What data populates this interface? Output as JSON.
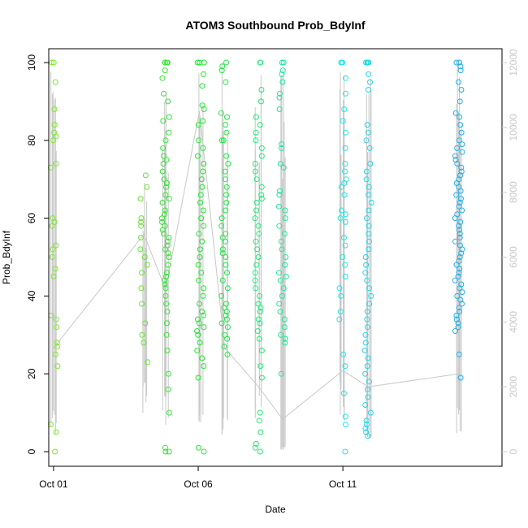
{
  "chart_data": {
    "type": "scatter",
    "title": "ATOM3 Southbound Prob_BdyInf",
    "xlabel": "Date",
    "ylabel": "Prob_BdyInf",
    "x_is_date": true,
    "x_range": [
      "2023-09-30T20:00:00",
      "2023-10-16T12:00:00"
    ],
    "x_ticks": [
      {
        "date": "2023-10-01",
        "label": "Oct 01"
      },
      {
        "date": "2023-10-06",
        "label": "Oct 06"
      },
      {
        "date": "2023-10-11",
        "label": "Oct 11"
      }
    ],
    "ylim": [
      0,
      100
    ],
    "y_ticks": [
      0,
      20,
      40,
      60,
      80,
      100
    ],
    "y2lim": [
      0,
      12000
    ],
    "y2_ticks": [
      0,
      2000,
      4000,
      6000,
      8000,
      10000,
      12000
    ],
    "y2_color": "#c8c8c8",
    "grid": false,
    "legend": "none",
    "point_style": "open-circle",
    "line_color": "#c8c8c8",
    "clusters": [
      {
        "date": "2023-10-01T00:30:00",
        "color": "#7fe633",
        "values": [
          100,
          100,
          95,
          88,
          84,
          82,
          81,
          80,
          74,
          73,
          60,
          59,
          58,
          53,
          52,
          50,
          47,
          45,
          35,
          34,
          32,
          28,
          27,
          25,
          22,
          7,
          5,
          0
        ]
      },
      {
        "date": "2023-10-04T03:00:00",
        "color": "#66e633",
        "values": [
          71,
          68,
          65,
          60,
          59,
          58,
          55,
          52,
          50,
          48,
          46,
          42,
          38,
          33,
          30,
          28,
          23
        ]
      },
      {
        "date": "2023-10-04T21:00:00",
        "color": "#33e633",
        "values": [
          100,
          100,
          100,
          100,
          98,
          96,
          92,
          90,
          86,
          85,
          82,
          80,
          78,
          76,
          75,
          74,
          72,
          70,
          69,
          68,
          66,
          65,
          64,
          62,
          61,
          60,
          59,
          58,
          57,
          56,
          55,
          54,
          53,
          52,
          51,
          50,
          48,
          46,
          45,
          44,
          43,
          42,
          40,
          38,
          36,
          33,
          30,
          26,
          20,
          16,
          10,
          1,
          0,
          0
        ]
      },
      {
        "date": "2023-10-06T02:00:00",
        "color": "#22e633",
        "values": [
          100,
          100,
          100,
          100,
          97,
          94,
          89,
          88,
          85,
          84,
          80,
          78,
          76,
          74,
          72,
          70,
          68,
          66,
          64,
          62,
          60,
          58,
          56,
          54,
          52,
          50,
          48,
          46,
          44,
          42,
          40,
          38,
          36,
          35,
          34,
          33,
          32,
          31,
          30,
          28,
          26,
          24,
          22,
          19,
          1,
          0
        ]
      },
      {
        "date": "2023-10-06T22:00:00",
        "color": "#22e644",
        "values": [
          100,
          99,
          98,
          95,
          87,
          86,
          84,
          82,
          80,
          80,
          76,
          74,
          72,
          70,
          68,
          66,
          64,
          62,
          60,
          58,
          56,
          55,
          54,
          52,
          51,
          50,
          48,
          46,
          44,
          42,
          40,
          38,
          37,
          36,
          35,
          34,
          33,
          32,
          30,
          29,
          27,
          25
        ]
      },
      {
        "date": "2023-10-08T02:00:00",
        "color": "#22e677",
        "values": [
          100,
          100,
          93,
          90,
          86,
          84,
          82,
          80,
          78,
          76,
          74,
          72,
          70,
          68,
          66,
          65,
          64,
          62,
          60,
          58,
          56,
          54,
          52,
          50,
          48,
          46,
          44,
          42,
          40,
          38,
          37,
          36,
          34,
          33,
          31,
          29,
          26,
          22,
          19,
          10,
          8,
          5,
          2,
          1,
          0
        ]
      },
      {
        "date": "2023-10-08T22:00:00",
        "color": "#22e699",
        "values": [
          100,
          100,
          98,
          97,
          95,
          92,
          91,
          88,
          79,
          78,
          74,
          73,
          67,
          66,
          63,
          62,
          60,
          58,
          56,
          54,
          52,
          50,
          48,
          46,
          45,
          44,
          42,
          40,
          38,
          36,
          34,
          32,
          30,
          29,
          28,
          20
        ]
      },
      {
        "date": "2023-10-11T00:00:00",
        "color": "#22e6e6",
        "values": [
          100,
          100,
          100,
          96,
          92,
          88,
          85,
          82,
          78,
          74,
          72,
          70,
          69,
          68,
          66,
          62,
          61,
          60,
          59,
          55,
          53,
          50,
          48,
          45,
          42,
          40,
          36,
          34,
          25,
          22,
          15,
          9,
          7,
          0
        ]
      },
      {
        "date": "2023-10-11T21:00:00",
        "color": "#22d6e6",
        "values": [
          100,
          100,
          100,
          100,
          97,
          95,
          93,
          84,
          82,
          80,
          78,
          74,
          72,
          70,
          68,
          66,
          64,
          62,
          60,
          58,
          56,
          54,
          52,
          50,
          48,
          46,
          44,
          42,
          40,
          38,
          36,
          34,
          32,
          30,
          28,
          26,
          24,
          22,
          20,
          18,
          16,
          14,
          12,
          10,
          8,
          7,
          6,
          5,
          4
        ]
      },
      {
        "date": "2023-10-15T00:00:00",
        "color": "#22b0e6",
        "values": [
          100,
          100,
          100,
          99,
          98,
          95,
          93,
          90,
          87,
          86,
          84,
          82,
          80,
          79,
          78,
          77,
          76,
          75,
          74,
          73,
          72,
          71,
          70,
          69,
          68,
          67,
          66,
          65,
          64,
          63,
          62,
          61,
          60,
          59,
          58,
          57,
          56,
          55,
          54,
          53,
          52,
          51,
          50,
          49,
          48,
          47,
          46,
          45,
          44,
          43,
          42,
          41,
          40,
          39,
          38,
          37,
          36,
          35,
          34,
          33,
          32,
          31,
          25,
          19
        ]
      }
    ],
    "line_series": {
      "axis": "right",
      "x": [
        "2023-10-01T00:00:00",
        "2023-10-04T03:00:00",
        "2023-10-04T21:00:00",
        "2023-10-06T01:00:00",
        "2023-10-06T22:00:00",
        "2023-10-08T02:00:00",
        "2023-10-08T22:00:00",
        "2023-10-11T00:00:00",
        "2023-10-11T21:00:00",
        "2023-10-15T00:00:00"
      ],
      "values": [
        3200,
        6700,
        5000,
        10500,
        3200,
        2000,
        1000,
        2500,
        2000,
        2400
      ],
      "trough": [
        1000,
        1500,
        1200,
        1000,
        800,
        1800,
        100,
        1800,
        500,
        900
      ]
    }
  }
}
